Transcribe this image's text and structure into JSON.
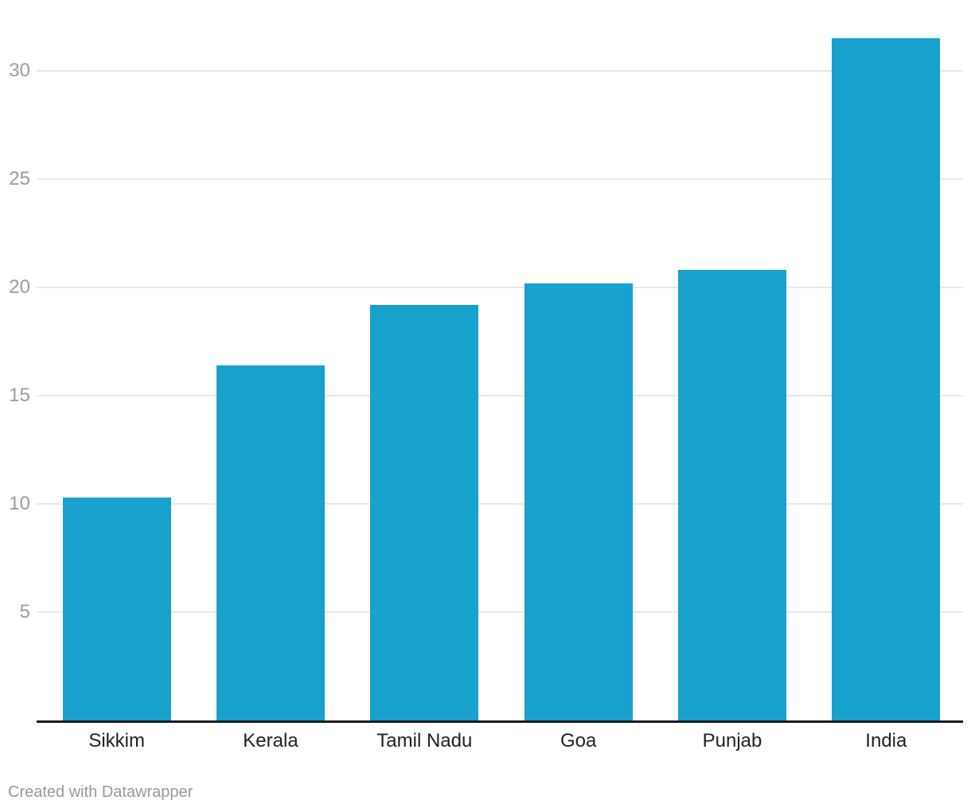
{
  "chart_data": {
    "type": "bar",
    "title": "",
    "xlabel": "",
    "ylabel": "",
    "categories": [
      "Sikkim",
      "Kerala",
      "Tamil Nadu",
      "Goa",
      "Punjab",
      "India"
    ],
    "values": [
      10.3,
      16.4,
      19.2,
      20.2,
      20.8,
      31.5
    ],
    "yticks": [
      5,
      10,
      15,
      20,
      25,
      30
    ],
    "ylim": [
      0,
      33.3
    ],
    "grid": true,
    "legend": "none",
    "bar_color": "#18a1cd"
  },
  "colors": {
    "bar": "#18a1cd",
    "gridline": "#e8e8e8",
    "axis_line": "#1a1a1a",
    "tick_label": "#9d9d9d",
    "category_label": "#222222",
    "footer_text": "#999999",
    "background": "#ffffff"
  },
  "footer": {
    "credit": "Created with Datawrapper"
  }
}
